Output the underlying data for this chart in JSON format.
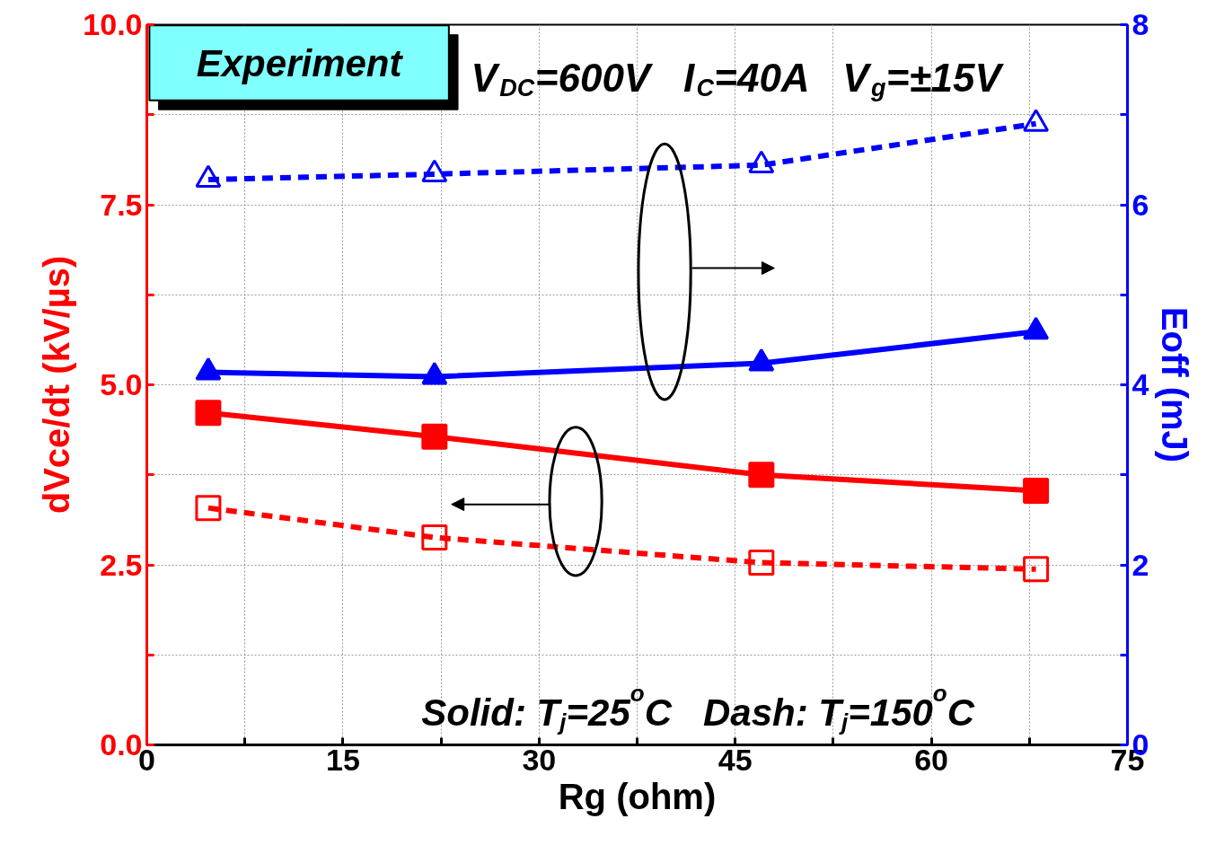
{
  "chart_data": {
    "type": "line",
    "xlabel": "Rg (ohm)",
    "ylabel": "dVce/dt (kV/µs)",
    "y2label": "Eoff (mJ)",
    "x": [
      4.7,
      22,
      47,
      68
    ],
    "series": [
      {
        "color": "#ff0000",
        "values": [
          4.61,
          4.28,
          3.75,
          3.53
        ],
        "line_style": "solid",
        "marker": "square"
      },
      {
        "color": "#ff0000",
        "values": [
          3.29,
          2.88,
          2.53,
          2.44
        ],
        "line_style": "dashed",
        "marker": "square"
      },
      {
        "color": "#0000ff",
        "values": [
          4.14,
          4.09,
          4.24,
          4.59
        ],
        "line_style": "solid",
        "marker": "triangle",
        "axis": "y2"
      },
      {
        "color": "#0000ff",
        "values": [
          6.28,
          6.34,
          6.44,
          6.9
        ],
        "line_style": "dashed",
        "marker": "triangle",
        "axis": "y2"
      }
    ],
    "xlim": [
      0,
      75
    ],
    "xticks": [
      0,
      {
        "value": 7.5,
        "label": null
      },
      15,
      {
        "value": 22.5,
        "label": null
      },
      30,
      {
        "value": 37.5,
        "label": null
      },
      45,
      {
        "value": 52.5,
        "label": null
      },
      60,
      {
        "value": 67.5,
        "label": null
      },
      75
    ],
    "ylim": [
      0,
      10
    ],
    "yticks": [
      "0.0",
      {
        "value": 1.25,
        "label": null
      },
      {
        "value": 2.5,
        "label": "2.5"
      },
      {
        "value": 3.75,
        "label": null
      },
      {
        "value": 5,
        "label": "5.0"
      },
      {
        "value": 6.25,
        "label": null
      },
      {
        "value": 7.5,
        "label": "7.5"
      },
      {
        "value": 8.75,
        "label": null
      },
      {
        "value": 10,
        "label": "10.0"
      }
    ],
    "y2lim": [
      0,
      8
    ],
    "y2ticks": [
      0,
      {
        "value": 1,
        "label": null
      },
      2,
      {
        "value": 3,
        "label": null
      },
      4,
      {
        "value": 5,
        "label": null
      },
      6,
      {
        "value": 7,
        "label": null
      },
      8
    ],
    "grid": true,
    "annotations": [
      "Experiment",
      "V$_{DC}$=600V   I$_{C}$=40A   V$_{g}$=±15V",
      "Solid: T$_{j}$=25$^{o}$C   Dash: T$_{j}$=150$^{o}$C"
    ]
  }
}
